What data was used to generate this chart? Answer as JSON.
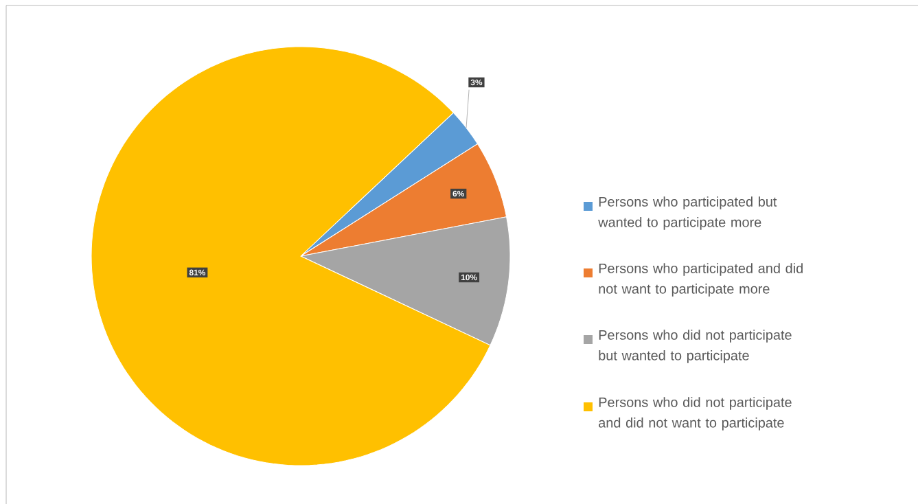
{
  "chart_data": {
    "type": "pie",
    "categories": [
      "Persons who participated but wanted to participate more",
      "Persons who participated and did not want to participate more",
      "Persons who did not participate but wanted to participate",
      "Persons who did not participate and did not want to participate"
    ],
    "values": [
      3,
      6,
      10,
      81
    ],
    "colors": [
      "#5b9bd5",
      "#ed7d31",
      "#a5a5a5",
      "#ffc000"
    ],
    "value_labels": [
      "3%",
      "6%",
      "10%",
      "81%"
    ],
    "legend": "right"
  }
}
